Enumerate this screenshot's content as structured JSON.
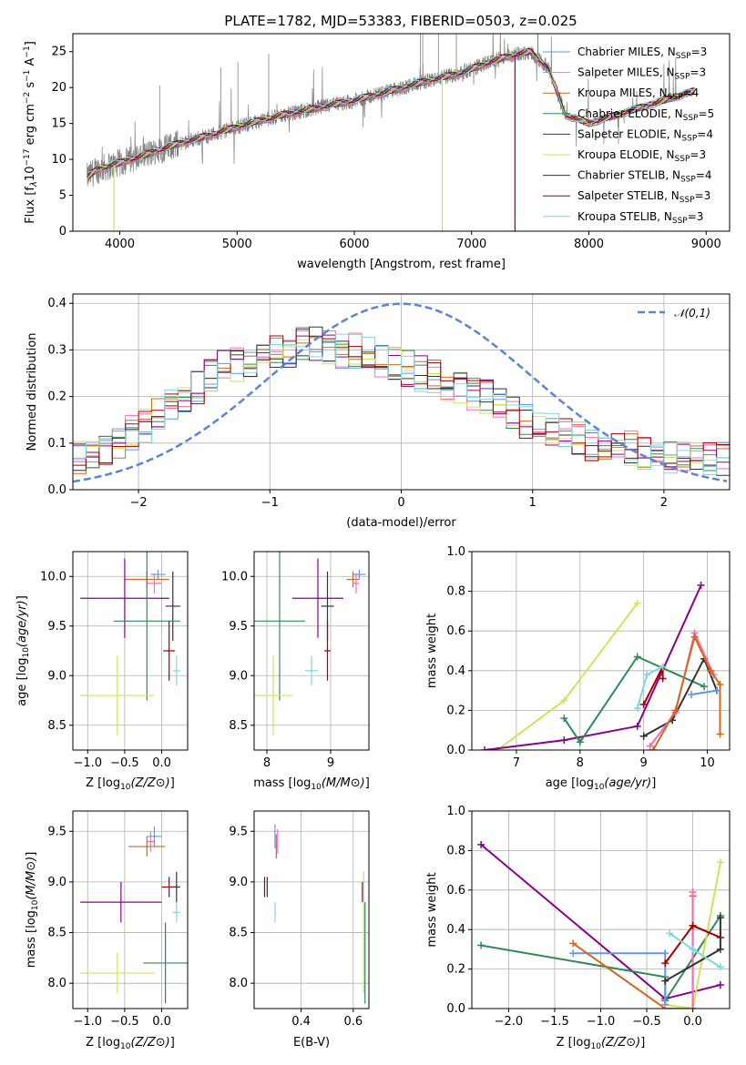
{
  "chart_data": [
    {
      "id": "spectrum",
      "type": "line",
      "title": "PLATE=1782, MJD=53383, FIBERID=0503, z=0.025",
      "xlabel": "wavelength [Angstrom, rest frame]",
      "ylabel": "Flux [f_λ 10^-17 erg cm^-2 s^-1 A^-1]",
      "xlim": [
        3600,
        9200
      ],
      "ylim": [
        0,
        27.5
      ],
      "xticks": [
        4000,
        5000,
        6000,
        7000,
        8000,
        9000
      ],
      "yticks": [
        0,
        5,
        10,
        15,
        20,
        25
      ],
      "grid": false,
      "legend_placement": "top-right",
      "data_color": "#808080",
      "continuum": {
        "x": [
          3720,
          3800,
          4000,
          4200,
          4500,
          4800,
          5100,
          5400,
          5700,
          6000,
          6300,
          6600,
          6900,
          7100,
          7300,
          7500,
          7650,
          7800,
          8000,
          8300,
          8600,
          8900
        ],
        "y": [
          7.5,
          8.5,
          9.5,
          10.5,
          12.2,
          13.5,
          15.0,
          16.2,
          17.2,
          18.2,
          19.5,
          20.8,
          22.0,
          23.2,
          24.3,
          25.0,
          22.8,
          16.2,
          15.0,
          16.5,
          18.0,
          19.5
        ]
      },
      "series": [
        {
          "name": "Chabrier MILES, N_SSP=3",
          "color": "#6495ed"
        },
        {
          "name": "Salpeter MILES, N_SSP=3",
          "color": "#ff69b4"
        },
        {
          "name": "Kroupa MILES, N_SSP=4",
          "color": "#d2691e"
        },
        {
          "name": "Chabrier ELODIE, N_SSP=5",
          "color": "#2e8b57"
        },
        {
          "name": "Salpeter ELODIE, N_SSP=4",
          "color": "#8b008b"
        },
        {
          "name": "Kroupa ELODIE, N_SSP=3",
          "color": "#d4e157"
        },
        {
          "name": "Chabrier STELIB, N_SSP=4",
          "color": "#333333"
        },
        {
          "name": "Salpeter STELIB, N_SSP=3",
          "color": "#a50000"
        },
        {
          "name": "Kroupa STELIB, N_SSP=3",
          "color": "#7fd8e0"
        }
      ]
    },
    {
      "id": "residuals",
      "type": "line",
      "xlabel": "(data-model)/error",
      "ylabel": "Normed distribution",
      "xlim": [
        -2.5,
        2.5
      ],
      "ylim": [
        0,
        0.42
      ],
      "xticks": [
        -2,
        -1,
        0,
        1,
        2
      ],
      "yticks": [
        0.0,
        0.1,
        0.2,
        0.3,
        0.4
      ],
      "grid": true,
      "legend": "𝒩(0,1)",
      "legend_placement": "top-right",
      "normal_color": "#5b84d6",
      "hist_profile": [
        0.07,
        0.08,
        0.09,
        0.1,
        0.12,
        0.14,
        0.16,
        0.18,
        0.2,
        0.22,
        0.24,
        0.26,
        0.27,
        0.28,
        0.29,
        0.3,
        0.3,
        0.31,
        0.31,
        0.31,
        0.3,
        0.3,
        0.29,
        0.28,
        0.27,
        0.26,
        0.25,
        0.24,
        0.23,
        0.22,
        0.21,
        0.2,
        0.19,
        0.17,
        0.15,
        0.14,
        0.13,
        0.12,
        0.11,
        0.1,
        0.1,
        0.09,
        0.09,
        0.08,
        0.08,
        0.07,
        0.07,
        0.07,
        0.07,
        0.07
      ]
    },
    {
      "id": "age-vs-Z",
      "type": "scatter",
      "xlabel": "Z [log10(Z/Z⊙)]",
      "ylabel": "age  [log10(age/yr)]",
      "xlim": [
        -1.2,
        0.35
      ],
      "ylim": [
        8.25,
        10.25
      ],
      "xticks": [
        -1.0,
        -0.5,
        0.0
      ],
      "yticks": [
        8.5,
        9.0,
        9.5,
        10.0
      ],
      "points": [
        {
          "x": -0.05,
          "y": 10.02,
          "xerr": 0.1,
          "yerr": 0.05,
          "color": "#6495ed"
        },
        {
          "x": -0.2,
          "y": 9.97,
          "xerr": 0.3,
          "yerr": 0.08,
          "color": "#d2691e"
        },
        {
          "x": -0.1,
          "y": 9.93,
          "xerr": 0.1,
          "yerr": 0.1,
          "color": "#ff69b4"
        },
        {
          "x": -0.5,
          "y": 9.78,
          "xerr": 0.6,
          "yerr": 0.4,
          "color": "#8b008b"
        },
        {
          "x": 0.15,
          "y": 9.7,
          "xerr": 0.1,
          "yerr": 0.35,
          "color": "#333333"
        },
        {
          "x": -0.2,
          "y": 9.55,
          "xerr": 0.45,
          "yerr": 0.8,
          "color": "#2e8b57"
        },
        {
          "x": 0.1,
          "y": 9.25,
          "xerr": 0.08,
          "yerr": 0.3,
          "color": "#a50000"
        },
        {
          "x": 0.2,
          "y": 9.05,
          "xerr": 0.05,
          "yerr": 0.15,
          "color": "#7fd8e0"
        },
        {
          "x": -0.6,
          "y": 8.8,
          "xerr": 0.5,
          "yerr": 0.4,
          "color": "#d4e157"
        }
      ]
    },
    {
      "id": "age-vs-mass",
      "type": "scatter",
      "xlabel": "mass [log10(M/M⊙)]",
      "xlim": [
        7.8,
        9.6
      ],
      "ylim": [
        8.25,
        10.25
      ],
      "xticks": [
        8,
        9
      ],
      "yticks": [
        8.5,
        9.0,
        9.5,
        10.0
      ],
      "points": [
        {
          "x": 9.45,
          "y": 10.02,
          "xerr": 0.1,
          "yerr": 0.05,
          "color": "#6495ed"
        },
        {
          "x": 9.35,
          "y": 9.97,
          "xerr": 0.1,
          "yerr": 0.08,
          "color": "#d2691e"
        },
        {
          "x": 9.4,
          "y": 9.93,
          "xerr": 0.05,
          "yerr": 0.1,
          "color": "#ff69b4"
        },
        {
          "x": 8.8,
          "y": 9.78,
          "xerr": 0.4,
          "yerr": 0.4,
          "color": "#8b008b"
        },
        {
          "x": 8.95,
          "y": 9.7,
          "xerr": 0.1,
          "yerr": 0.35,
          "color": "#333333"
        },
        {
          "x": 8.2,
          "y": 9.55,
          "xerr": 0.4,
          "yerr": 0.8,
          "color": "#2e8b57"
        },
        {
          "x": 8.95,
          "y": 9.25,
          "xerr": 0.05,
          "yerr": 0.3,
          "color": "#a50000"
        },
        {
          "x": 8.7,
          "y": 9.05,
          "xerr": 0.1,
          "yerr": 0.15,
          "color": "#7fd8e0"
        },
        {
          "x": 8.1,
          "y": 8.8,
          "xerr": 0.3,
          "yerr": 0.4,
          "color": "#d4e157"
        }
      ]
    },
    {
      "id": "weight-vs-age",
      "type": "line",
      "xlabel": "age  [log10(age/yr)]",
      "ylabel": "mass weight",
      "xlim": [
        6.3,
        10.35
      ],
      "ylim": [
        0,
        1.0
      ],
      "xticks": [
        7,
        8,
        9,
        10
      ],
      "yticks": [
        0.0,
        0.2,
        0.4,
        0.6,
        0.8,
        1.0
      ],
      "grid": true,
      "series": [
        {
          "color": "#d4e157",
          "x": [
            6.7,
            7.75,
            8.9
          ],
          "y": [
            0.0,
            0.25,
            0.74
          ]
        },
        {
          "color": "#8b008b",
          "x": [
            6.5,
            7.75,
            8.9,
            9.9
          ],
          "y": [
            0.0,
            0.05,
            0.12,
            0.83
          ]
        },
        {
          "color": "#2e8b57",
          "x": [
            7.75,
            8.0,
            8.9,
            9.95
          ],
          "y": [
            0.16,
            0.04,
            0.47,
            0.32
          ]
        },
        {
          "color": "#333333",
          "x": [
            9.0,
            9.45,
            9.95,
            10.15
          ],
          "y": [
            0.07,
            0.15,
            0.46,
            0.3
          ]
        },
        {
          "color": "#a50000",
          "x": [
            9.0,
            9.3,
            9.3
          ],
          "y": [
            0.23,
            0.42,
            0.36
          ]
        },
        {
          "color": "#7fd8e0",
          "x": [
            8.9,
            9.05,
            9.3
          ],
          "y": [
            0.21,
            0.38,
            0.42
          ]
        },
        {
          "color": "#ff69b4",
          "x": [
            9.1,
            9.5,
            9.8,
            10.1
          ],
          "y": [
            0.02,
            0.19,
            0.59,
            0.38
          ]
        },
        {
          "color": "#d2691e",
          "x": [
            9.15,
            9.5,
            9.8,
            10.05,
            10.2,
            10.2
          ],
          "y": [
            0.0,
            0.2,
            0.57,
            0.4,
            0.33,
            0.08
          ]
        },
        {
          "color": "#6495ed",
          "x": [
            9.75,
            10.15
          ],
          "y": [
            0.28,
            0.3
          ]
        }
      ]
    },
    {
      "id": "mass-vs-Z",
      "type": "scatter",
      "xlabel": "Z [log10(Z/Z⊙)]",
      "ylabel": "mass [log10(M/M⊙)]",
      "xlim": [
        -1.2,
        0.35
      ],
      "ylim": [
        7.75,
        9.7
      ],
      "xticks": [
        -1.0,
        -0.5,
        0.0
      ],
      "yticks": [
        8.0,
        8.5,
        9.0,
        9.5
      ],
      "points": [
        {
          "x": -0.1,
          "y": 9.45,
          "xerr": 0.1,
          "yerr": 0.1,
          "color": "#6495ed"
        },
        {
          "x": -0.2,
          "y": 9.35,
          "xerr": 0.25,
          "yerr": 0.1,
          "color": "#d2691e"
        },
        {
          "x": -0.15,
          "y": 9.4,
          "xerr": 0.05,
          "yerr": 0.1,
          "color": "#ff69b4"
        },
        {
          "x": 0.1,
          "y": 8.95,
          "xerr": 0.1,
          "yerr": 0.1,
          "color": "#a50000"
        },
        {
          "x": 0.2,
          "y": 8.95,
          "xerr": 0.05,
          "yerr": 0.15,
          "color": "#333333"
        },
        {
          "x": -0.55,
          "y": 8.8,
          "xerr": 0.55,
          "yerr": 0.2,
          "color": "#8b008b"
        },
        {
          "x": 0.2,
          "y": 8.7,
          "xerr": 0.05,
          "yerr": 0.1,
          "color": "#7fd8e0"
        },
        {
          "x": 0.05,
          "y": 8.2,
          "xerr": 0.3,
          "yerr": 0.4,
          "color": "#2e8b57"
        },
        {
          "x": -0.6,
          "y": 8.1,
          "xerr": 0.5,
          "yerr": 0.2,
          "color": "#d4e157"
        }
      ]
    },
    {
      "id": "mass-vs-ebv",
      "type": "scatter",
      "xlabel": "E(B-V)",
      "xlim": [
        0.22,
        0.66
      ],
      "ylim": [
        7.75,
        9.7
      ],
      "xticks": [
        0.4,
        0.6
      ],
      "yticks": [
        8.0,
        8.5,
        9.0,
        9.5
      ],
      "points": [
        {
          "x": 0.3,
          "y": 9.45,
          "xerr": 0.0,
          "yerr": 0.12,
          "color": "#6495ed"
        },
        {
          "x": 0.305,
          "y": 9.35,
          "xerr": 0.0,
          "yerr": 0.12,
          "color": "#d2691e"
        },
        {
          "x": 0.31,
          "y": 9.4,
          "xerr": 0.0,
          "yerr": 0.12,
          "color": "#ff69b4"
        },
        {
          "x": 0.3,
          "y": 8.7,
          "xerr": 0.0,
          "yerr": 0.1,
          "color": "#7fd8e0"
        },
        {
          "x": 0.26,
          "y": 8.95,
          "xerr": 0.0,
          "yerr": 0.1,
          "color": "#333333"
        },
        {
          "x": 0.27,
          "y": 8.95,
          "xerr": 0.0,
          "yerr": 0.1,
          "color": "#a50000"
        },
        {
          "x": 0.635,
          "y": 8.9,
          "xerr": 0.0,
          "yerr": 0.1,
          "color": "#8b008b"
        },
        {
          "x": 0.64,
          "y": 8.5,
          "xerr": 0.0,
          "yerr": 0.6,
          "color": "#d4e157"
        },
        {
          "x": 0.645,
          "y": 8.3,
          "xerr": 0.0,
          "yerr": 0.5,
          "color": "#2e8b57"
        }
      ]
    },
    {
      "id": "weight-vs-Z",
      "type": "line",
      "xlabel": "Z [log10(Z/Z⊙)]",
      "ylabel": "mass weight",
      "xlim": [
        -2.4,
        0.4
      ],
      "ylim": [
        0,
        1.0
      ],
      "xticks": [
        -2.0,
        -1.5,
        -1.0,
        -0.5,
        0.0
      ],
      "yticks": [
        0.0,
        0.2,
        0.4,
        0.6,
        0.8,
        1.0
      ],
      "grid": true,
      "series": [
        {
          "color": "#8b008b",
          "x": [
            -2.3,
            -0.3,
            0.3
          ],
          "y": [
            0.83,
            0.05,
            0.12
          ]
        },
        {
          "color": "#2e8b57",
          "x": [
            -2.3,
            -0.3,
            -0.3,
            0.3
          ],
          "y": [
            0.32,
            0.16,
            0.04,
            0.47
          ]
        },
        {
          "color": "#d4e157",
          "x": [
            -0.3,
            0.0,
            0.3
          ],
          "y": [
            0.02,
            0.0,
            0.74
          ]
        },
        {
          "color": "#6495ed",
          "x": [
            -1.3,
            -0.3,
            -0.3
          ],
          "y": [
            0.28,
            0.28,
            0.02
          ]
        },
        {
          "color": "#d2691e",
          "x": [
            -1.3,
            -0.3,
            0.0,
            0.0
          ],
          "y": [
            0.33,
            0.0,
            0.0,
            0.57
          ]
        },
        {
          "color": "#ff69b4",
          "x": [
            -0.3,
            0.0,
            0.0
          ],
          "y": [
            0.0,
            0.0,
            0.59
          ]
        },
        {
          "color": "#a50000",
          "x": [
            -0.3,
            0.0,
            0.3
          ],
          "y": [
            0.23,
            0.42,
            0.36
          ]
        },
        {
          "color": "#333333",
          "x": [
            -0.3,
            0.3,
            0.3
          ],
          "y": [
            0.14,
            0.3,
            0.46
          ]
        },
        {
          "color": "#7fd8e0",
          "x": [
            -0.25,
            0.0,
            0.3
          ],
          "y": [
            0.38,
            0.3,
            0.21
          ]
        }
      ]
    }
  ]
}
